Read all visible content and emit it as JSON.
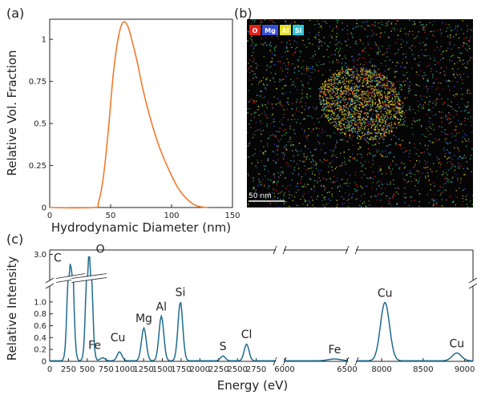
{
  "chart_data": [
    {
      "panel": "(a)",
      "type": "line",
      "xlabel": "Hydrodynamic Diameter (nm)",
      "ylabel": "Relative Vol. Fraction",
      "xlim": [
        0,
        150
      ],
      "ylim": [
        0,
        1.12
      ],
      "xticks": [
        0,
        50,
        100,
        150
      ],
      "yticks": [
        0,
        0.25,
        0.5,
        0.75,
        1
      ],
      "ytick_labels": [
        "0",
        "0.25",
        "0.5",
        "0.75",
        "1"
      ],
      "line_color": "#f07a2c",
      "x": [
        0,
        36,
        40,
        44,
        48,
        52,
        56,
        60,
        64,
        68,
        72,
        76,
        80,
        85,
        90,
        95,
        100,
        105,
        110,
        115,
        120,
        125,
        130
      ],
      "y": [
        0,
        0,
        0.03,
        0.18,
        0.45,
        0.78,
        1.0,
        1.1,
        1.08,
        0.98,
        0.86,
        0.72,
        0.6,
        0.47,
        0.36,
        0.27,
        0.19,
        0.12,
        0.07,
        0.035,
        0.012,
        0.003,
        0
      ]
    },
    {
      "panel": "(b)",
      "type": "image",
      "legend": [
        {
          "label": "O",
          "color": "#e8201a"
        },
        {
          "label": "Mg",
          "color": "#3a4fd8"
        },
        {
          "label": "Al",
          "color": "#e8e020"
        },
        {
          "label": "Si",
          "color": "#30c8d8"
        }
      ],
      "scale_bar": "50 nm"
    },
    {
      "panel": "(c)",
      "type": "line",
      "xlabel": "Energy (eV)",
      "ylabel": "Relative Intensity",
      "line_color": "#1f6b8e",
      "segments": [
        {
          "xlim": [
            0,
            3000
          ],
          "xticks": [
            0,
            250,
            500,
            750,
            1000,
            1250,
            1500,
            1750,
            2000,
            2250,
            2500,
            2750
          ]
        },
        {
          "xlim": [
            6000,
            6500
          ],
          "xticks": [
            6000,
            6500
          ]
        },
        {
          "xlim": [
            7700,
            9100
          ],
          "xticks": [
            8000,
            8500,
            9000
          ]
        }
      ],
      "yticks_lower": [
        0,
        0.2,
        0.4,
        0.6,
        0.8,
        1.0
      ],
      "ytick_labels_lower": [
        "0",
        "0.2",
        "0.4",
        "0.6",
        "0.8",
        "1.0"
      ],
      "ytick_upper": "3.0",
      "peaks": [
        {
          "label": "C",
          "x": 277,
          "y": 2.8
        },
        {
          "label": "O",
          "x": 525,
          "y": 3.0
        },
        {
          "label": "Fe",
          "x": 705,
          "y": 0.05
        },
        {
          "label": "Cu",
          "x": 930,
          "y": 0.15
        },
        {
          "label": "Mg",
          "x": 1254,
          "y": 0.55
        },
        {
          "label": "Al",
          "x": 1487,
          "y": 0.75
        },
        {
          "label": "Si",
          "x": 1740,
          "y": 0.99
        },
        {
          "label": "S",
          "x": 2307,
          "y": 0.08
        },
        {
          "label": "Cl",
          "x": 2622,
          "y": 0.28
        },
        {
          "label": "Fe",
          "x": 6400,
          "y": 0.03
        },
        {
          "label": "Cu",
          "x": 8040,
          "y": 0.98
        },
        {
          "label": "Cu",
          "x": 8905,
          "y": 0.13
        }
      ]
    }
  ]
}
